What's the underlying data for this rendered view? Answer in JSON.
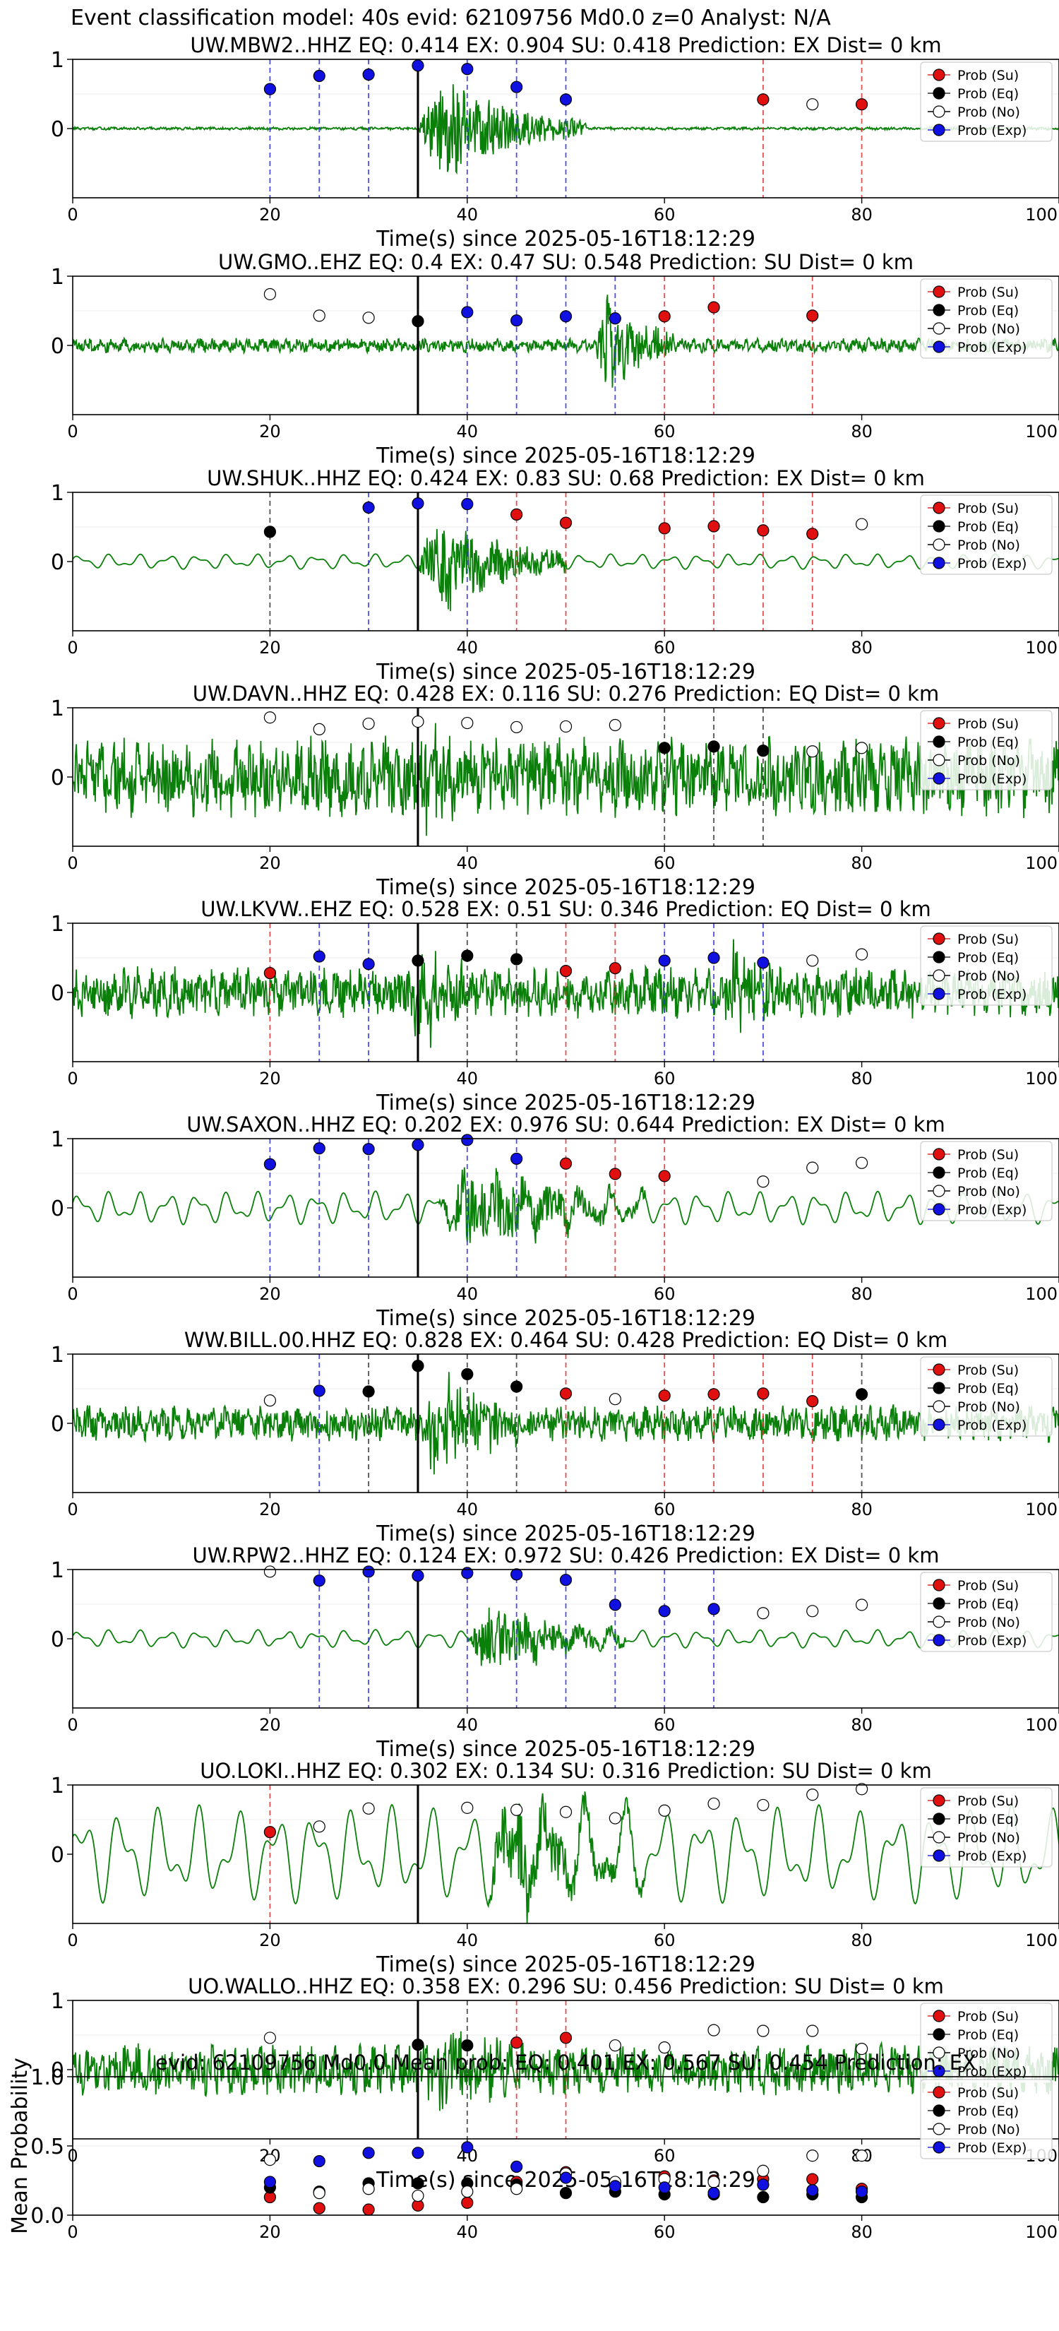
{
  "figure": {
    "title": "Event classification model: 40s evid: 62109756 Md0.0 z=0 Analyst: N/A"
  },
  "legend_labels": [
    "Prob (Su)",
    "Prob (Eq)",
    "Prob (No)",
    "Prob (Exp)"
  ],
  "colors": {
    "su": "#e01010",
    "eq": "#000000",
    "no": "#ffffff",
    "exp": "#1010e0",
    "waveform": "#0a800a",
    "su_line": "#e03030",
    "eq_line": "#333333",
    "exp_line": "#3030e0",
    "arrival_line": "#000000"
  },
  "chart_data": [
    {
      "type": "scatter",
      "station": "UW.MBW2..HHZ",
      "title": "UW.MBW2..HHZ   EQ: 0.414   EX: 0.904   SU: 0.418   Prediction: EX    Dist= 0 km",
      "xlabel": "Time(s) since 2025-05-16T18:12:29",
      "xlim": [
        0,
        100
      ],
      "ylim": [
        -1,
        1
      ],
      "x_ticks": [
        "0",
        "20",
        "40",
        "60",
        "80",
        "100"
      ],
      "y_ticks": [
        "1",
        "0"
      ],
      "arrival": 35,
      "noise": 0.02,
      "bursts": [
        {
          "start": 35,
          "end": 52,
          "amp": 1.0
        }
      ],
      "wave_style": "hf",
      "points": [
        {
          "x": 20,
          "y": 0.57,
          "c": "exp"
        },
        {
          "x": 25,
          "y": 0.76,
          "c": "exp"
        },
        {
          "x": 30,
          "y": 0.78,
          "c": "exp"
        },
        {
          "x": 35,
          "y": 0.91,
          "c": "exp"
        },
        {
          "x": 40,
          "y": 0.86,
          "c": "exp"
        },
        {
          "x": 45,
          "y": 0.6,
          "c": "exp"
        },
        {
          "x": 50,
          "y": 0.42,
          "c": "exp"
        },
        {
          "x": 70,
          "y": 0.42,
          "c": "su"
        },
        {
          "x": 75,
          "y": 0.35,
          "c": "no"
        },
        {
          "x": 80,
          "y": 0.35,
          "c": "su"
        }
      ]
    },
    {
      "type": "scatter",
      "station": "UW.GMO..EHZ",
      "title": "UW.GMO..EHZ   EQ: 0.4  EX: 0.47  SU: 0.548   Prediction: SU    Dist= 0 km",
      "xlabel": "Time(s) since 2025-05-16T18:12:29",
      "xlim": [
        0,
        100
      ],
      "ylim": [
        -1,
        1
      ],
      "x_ticks": [
        "0",
        "20",
        "40",
        "60",
        "80",
        "100"
      ],
      "y_ticks": [
        "1",
        "0"
      ],
      "arrival": 35,
      "noise": 0.1,
      "bursts": [
        {
          "start": 53,
          "end": 61,
          "amp": 1.0
        }
      ],
      "wave_style": "hf",
      "points": [
        {
          "x": 20,
          "y": 0.74,
          "c": "no"
        },
        {
          "x": 25,
          "y": 0.43,
          "c": "no"
        },
        {
          "x": 30,
          "y": 0.4,
          "c": "no"
        },
        {
          "x": 35,
          "y": 0.35,
          "c": "eq"
        },
        {
          "x": 40,
          "y": 0.48,
          "c": "exp"
        },
        {
          "x": 45,
          "y": 0.36,
          "c": "exp"
        },
        {
          "x": 50,
          "y": 0.42,
          "c": "exp"
        },
        {
          "x": 55,
          "y": 0.39,
          "c": "exp"
        },
        {
          "x": 60,
          "y": 0.42,
          "c": "su"
        },
        {
          "x": 65,
          "y": 0.55,
          "c": "su"
        },
        {
          "x": 75,
          "y": 0.43,
          "c": "su"
        }
      ]
    },
    {
      "type": "scatter",
      "station": "UW.SHUK..HHZ",
      "title": "UW.SHUK..HHZ   EQ: 0.424  EX: 0.83  SU: 0.68   Prediction: EX    Dist= 0 km",
      "xlabel": "Time(s) since 2025-05-16T18:12:29",
      "xlim": [
        0,
        100
      ],
      "ylim": [
        -1,
        1
      ],
      "x_ticks": [
        "0",
        "20",
        "40",
        "60",
        "80",
        "100"
      ],
      "y_ticks": [
        "1",
        "0"
      ],
      "arrival": 35,
      "noise": 0.1,
      "bursts": [
        {
          "start": 35,
          "end": 50,
          "amp": 0.95
        }
      ],
      "wave_style": "lf",
      "points": [
        {
          "x": 20,
          "y": 0.43,
          "c": "eq"
        },
        {
          "x": 30,
          "y": 0.78,
          "c": "exp"
        },
        {
          "x": 35,
          "y": 0.84,
          "c": "exp"
        },
        {
          "x": 40,
          "y": 0.83,
          "c": "exp"
        },
        {
          "x": 45,
          "y": 0.68,
          "c": "su"
        },
        {
          "x": 50,
          "y": 0.56,
          "c": "su"
        },
        {
          "x": 60,
          "y": 0.48,
          "c": "su"
        },
        {
          "x": 65,
          "y": 0.51,
          "c": "su"
        },
        {
          "x": 70,
          "y": 0.45,
          "c": "su"
        },
        {
          "x": 75,
          "y": 0.4,
          "c": "su"
        },
        {
          "x": 80,
          "y": 0.54,
          "c": "no"
        }
      ]
    },
    {
      "type": "scatter",
      "station": "UW.DAVN..HHZ",
      "title": "UW.DAVN..HHZ   EQ: 0.428  EX: 0.116  SU: 0.276   Prediction: EQ    Dist= 0 km",
      "xlabel": "Time(s) since 2025-05-16T18:12:29",
      "xlim": [
        0,
        100
      ],
      "ylim": [
        -1,
        1
      ],
      "x_ticks": [
        "0",
        "20",
        "40",
        "60",
        "80",
        "100"
      ],
      "y_ticks": [
        "1",
        "0"
      ],
      "arrival": 35,
      "noise": 0.55,
      "bursts": [
        {
          "start": 35,
          "end": 40,
          "amp": 0.95
        }
      ],
      "wave_style": "hf",
      "points": [
        {
          "x": 20,
          "y": 0.86,
          "c": "no"
        },
        {
          "x": 25,
          "y": 0.69,
          "c": "no"
        },
        {
          "x": 30,
          "y": 0.77,
          "c": "no"
        },
        {
          "x": 35,
          "y": 0.8,
          "c": "no"
        },
        {
          "x": 40,
          "y": 0.78,
          "c": "no"
        },
        {
          "x": 45,
          "y": 0.72,
          "c": "no"
        },
        {
          "x": 50,
          "y": 0.73,
          "c": "no"
        },
        {
          "x": 55,
          "y": 0.75,
          "c": "no"
        },
        {
          "x": 60,
          "y": 0.42,
          "c": "eq"
        },
        {
          "x": 65,
          "y": 0.44,
          "c": "eq"
        },
        {
          "x": 70,
          "y": 0.38,
          "c": "eq"
        },
        {
          "x": 75,
          "y": 0.37,
          "c": "no"
        },
        {
          "x": 80,
          "y": 0.42,
          "c": "no"
        }
      ]
    },
    {
      "type": "scatter",
      "station": "UW.LKVW..EHZ",
      "title": "UW.LKVW..EHZ   EQ: 0.528  EX: 0.51  SU: 0.346   Prediction: EQ    Dist= 0 km",
      "xlabel": "Time(s) since 2025-05-16T18:12:29",
      "xlim": [
        0,
        100
      ],
      "ylim": [
        -1,
        1
      ],
      "x_ticks": [
        "0",
        "20",
        "40",
        "60",
        "80",
        "100"
      ],
      "y_ticks": [
        "1",
        "0"
      ],
      "arrival": 35,
      "noise": 0.35,
      "bursts": [
        {
          "start": 34,
          "end": 42,
          "amp": 0.85
        },
        {
          "start": 66,
          "end": 72,
          "amp": 0.75
        }
      ],
      "wave_style": "hf",
      "points": [
        {
          "x": 20,
          "y": 0.28,
          "c": "su"
        },
        {
          "x": 25,
          "y": 0.52,
          "c": "exp"
        },
        {
          "x": 30,
          "y": 0.41,
          "c": "exp"
        },
        {
          "x": 35,
          "y": 0.46,
          "c": "eq"
        },
        {
          "x": 40,
          "y": 0.53,
          "c": "eq"
        },
        {
          "x": 45,
          "y": 0.48,
          "c": "eq"
        },
        {
          "x": 50,
          "y": 0.31,
          "c": "su"
        },
        {
          "x": 55,
          "y": 0.35,
          "c": "su"
        },
        {
          "x": 60,
          "y": 0.46,
          "c": "exp"
        },
        {
          "x": 65,
          "y": 0.5,
          "c": "exp"
        },
        {
          "x": 70,
          "y": 0.43,
          "c": "exp"
        },
        {
          "x": 75,
          "y": 0.46,
          "c": "no"
        },
        {
          "x": 80,
          "y": 0.55,
          "c": "no"
        }
      ]
    },
    {
      "type": "scatter",
      "station": "UW.SAXON..HHZ",
      "title": "UW.SAXON..HHZ   EQ: 0.202  EX: 0.976  SU: 0.644   Prediction: EX    Dist= 0 km",
      "xlabel": "Time(s) since 2025-05-16T18:12:29",
      "xlim": [
        0,
        100
      ],
      "ylim": [
        -1,
        1
      ],
      "x_ticks": [
        "0",
        "20",
        "40",
        "60",
        "80",
        "100"
      ],
      "y_ticks": [
        "1",
        "0"
      ],
      "arrival": 35,
      "noise": 0.22,
      "bursts": [
        {
          "start": 37,
          "end": 58,
          "amp": 0.8
        }
      ],
      "wave_style": "lf",
      "points": [
        {
          "x": 20,
          "y": 0.63,
          "c": "exp"
        },
        {
          "x": 25,
          "y": 0.86,
          "c": "exp"
        },
        {
          "x": 30,
          "y": 0.85,
          "c": "exp"
        },
        {
          "x": 35,
          "y": 0.91,
          "c": "exp"
        },
        {
          "x": 40,
          "y": 0.98,
          "c": "exp"
        },
        {
          "x": 45,
          "y": 0.71,
          "c": "exp"
        },
        {
          "x": 50,
          "y": 0.64,
          "c": "su"
        },
        {
          "x": 55,
          "y": 0.49,
          "c": "su"
        },
        {
          "x": 60,
          "y": 0.46,
          "c": "su"
        },
        {
          "x": 70,
          "y": 0.38,
          "c": "no"
        },
        {
          "x": 75,
          "y": 0.58,
          "c": "no"
        },
        {
          "x": 80,
          "y": 0.65,
          "c": "no"
        }
      ]
    },
    {
      "type": "scatter",
      "station": "WW.BILL.00.HHZ",
      "title": "WW.BILL.00.HHZ   EQ: 0.828  EX: 0.464  SU: 0.428   Prediction: EQ    Dist= 0 km",
      "xlabel": "Time(s) since 2025-05-16T18:12:29",
      "xlim": [
        0,
        100
      ],
      "ylim": [
        -1,
        1
      ],
      "x_ticks": [
        "0",
        "20",
        "40",
        "60",
        "80",
        "100"
      ],
      "y_ticks": [
        "1",
        "0"
      ],
      "arrival": 35,
      "noise": 0.25,
      "bursts": [
        {
          "start": 35,
          "end": 46,
          "amp": 0.95
        }
      ],
      "wave_style": "hf",
      "points": [
        {
          "x": 20,
          "y": 0.33,
          "c": "no"
        },
        {
          "x": 25,
          "y": 0.47,
          "c": "exp"
        },
        {
          "x": 30,
          "y": 0.46,
          "c": "eq"
        },
        {
          "x": 35,
          "y": 0.83,
          "c": "eq"
        },
        {
          "x": 40,
          "y": 0.71,
          "c": "eq"
        },
        {
          "x": 45,
          "y": 0.53,
          "c": "eq"
        },
        {
          "x": 50,
          "y": 0.43,
          "c": "su"
        },
        {
          "x": 55,
          "y": 0.35,
          "c": "no"
        },
        {
          "x": 60,
          "y": 0.4,
          "c": "su"
        },
        {
          "x": 65,
          "y": 0.42,
          "c": "su"
        },
        {
          "x": 70,
          "y": 0.43,
          "c": "su"
        },
        {
          "x": 75,
          "y": 0.32,
          "c": "su"
        },
        {
          "x": 80,
          "y": 0.42,
          "c": "eq"
        }
      ]
    },
    {
      "type": "scatter",
      "station": "UW.RPW2..HHZ",
      "title": "UW.RPW2..HHZ   EQ: 0.124  EX: 0.972  SU: 0.426   Prediction: EX    Dist= 0 km",
      "xlabel": "Time(s) since 2025-05-16T18:12:29",
      "xlim": [
        0,
        100
      ],
      "ylim": [
        -1,
        1
      ],
      "x_ticks": [
        "0",
        "20",
        "40",
        "60",
        "80",
        "100"
      ],
      "y_ticks": [
        "1",
        "0"
      ],
      "arrival": 35,
      "noise": 0.12,
      "bursts": [
        {
          "start": 40,
          "end": 56,
          "amp": 0.7
        }
      ],
      "wave_style": "lf",
      "points": [
        {
          "x": 20,
          "y": 0.97,
          "c": "no"
        },
        {
          "x": 25,
          "y": 0.84,
          "c": "exp"
        },
        {
          "x": 30,
          "y": 0.97,
          "c": "exp"
        },
        {
          "x": 35,
          "y": 0.91,
          "c": "exp"
        },
        {
          "x": 40,
          "y": 0.95,
          "c": "exp"
        },
        {
          "x": 45,
          "y": 0.93,
          "c": "exp"
        },
        {
          "x": 50,
          "y": 0.85,
          "c": "exp"
        },
        {
          "x": 55,
          "y": 0.49,
          "c": "exp"
        },
        {
          "x": 60,
          "y": 0.4,
          "c": "exp"
        },
        {
          "x": 65,
          "y": 0.43,
          "c": "exp"
        },
        {
          "x": 70,
          "y": 0.37,
          "c": "no"
        },
        {
          "x": 75,
          "y": 0.4,
          "c": "no"
        },
        {
          "x": 80,
          "y": 0.49,
          "c": "no"
        }
      ]
    },
    {
      "type": "scatter",
      "station": "UO.LOKI..HHZ",
      "title": "UO.LOKI..HHZ   EQ: 0.302  EX: 0.134  SU: 0.316   Prediction: SU    Dist= 0 km",
      "xlabel": "Time(s) since 2025-05-16T18:12:29",
      "xlim": [
        0,
        100
      ],
      "ylim": [
        -1,
        1
      ],
      "x_ticks": [
        "0",
        "20",
        "40",
        "60",
        "80",
        "100"
      ],
      "y_ticks": [
        "1",
        "0"
      ],
      "arrival": 35,
      "noise": 0.55,
      "bursts": [
        {
          "start": 42,
          "end": 58,
          "amp": 0.9
        }
      ],
      "wave_style": "vlf",
      "points": [
        {
          "x": 20,
          "y": 0.32,
          "c": "su"
        },
        {
          "x": 25,
          "y": 0.4,
          "c": "no"
        },
        {
          "x": 30,
          "y": 0.66,
          "c": "no"
        },
        {
          "x": 40,
          "y": 0.67,
          "c": "no"
        },
        {
          "x": 45,
          "y": 0.64,
          "c": "no"
        },
        {
          "x": 50,
          "y": 0.61,
          "c": "no"
        },
        {
          "x": 55,
          "y": 0.52,
          "c": "no"
        },
        {
          "x": 60,
          "y": 0.63,
          "c": "no"
        },
        {
          "x": 65,
          "y": 0.73,
          "c": "no"
        },
        {
          "x": 70,
          "y": 0.71,
          "c": "no"
        },
        {
          "x": 75,
          "y": 0.86,
          "c": "no"
        },
        {
          "x": 80,
          "y": 0.94,
          "c": "no"
        }
      ]
    },
    {
      "type": "scatter",
      "station": "UO.WALLO..HHZ",
      "title": "UO.WALLO..HHZ   EQ: 0.358  EX: 0.296  SU: 0.456   Prediction: SU    Dist= 0 km",
      "xlabel": "Time(s) since 2025-05-16T18:12:29",
      "xlim": [
        0,
        100
      ],
      "ylim": [
        -1,
        1
      ],
      "x_ticks": [
        "0",
        "20",
        "40",
        "60",
        "80",
        "100"
      ],
      "y_ticks": [
        "1",
        "0"
      ],
      "arrival": 35,
      "noise": 0.35,
      "bursts": [
        {
          "start": 35,
          "end": 48,
          "amp": 0.7
        }
      ],
      "wave_style": "hf",
      "points": [
        {
          "x": 20,
          "y": 0.46,
          "c": "no"
        },
        {
          "x": 35,
          "y": 0.36,
          "c": "eq"
        },
        {
          "x": 40,
          "y": 0.35,
          "c": "eq"
        },
        {
          "x": 45,
          "y": 0.39,
          "c": "su"
        },
        {
          "x": 50,
          "y": 0.46,
          "c": "su"
        },
        {
          "x": 55,
          "y": 0.35,
          "c": "no"
        },
        {
          "x": 60,
          "y": 0.32,
          "c": "no"
        },
        {
          "x": 65,
          "y": 0.57,
          "c": "no"
        },
        {
          "x": 70,
          "y": 0.56,
          "c": "no"
        },
        {
          "x": 75,
          "y": 0.56,
          "c": "no"
        },
        {
          "x": 80,
          "y": 0.3,
          "c": "no"
        }
      ]
    },
    {
      "type": "scatter",
      "station": "mean",
      "title": "evid: 62109756  Md0.0   Mean prob:   EQ: 0.401  EX: 0.567  SU: 0.454   Prediction: EX",
      "xlabel": "",
      "ylabel": "Mean Probability",
      "xlim": [
        0,
        100
      ],
      "ylim": [
        0,
        1
      ],
      "x_ticks": [
        "0",
        "20",
        "40",
        "60",
        "80",
        "100"
      ],
      "y_ticks": [
        "1.0",
        "0.5",
        "0.0"
      ],
      "x": [
        20,
        25,
        30,
        35,
        40,
        45,
        50,
        55,
        60,
        65,
        70,
        75,
        80
      ],
      "series": [
        {
          "name": "Prob (Su)",
          "c": "su",
          "values": [
            0.13,
            0.05,
            0.04,
            0.07,
            0.09,
            0.24,
            0.31,
            0.22,
            0.28,
            0.25,
            0.26,
            0.26,
            0.19
          ]
        },
        {
          "name": "Prob (Eq)",
          "c": "eq",
          "values": [
            0.2,
            0.17,
            0.23,
            0.23,
            0.23,
            0.22,
            0.16,
            0.17,
            0.15,
            0.15,
            0.13,
            0.15,
            0.13
          ]
        },
        {
          "name": "Prob (No)",
          "c": "no",
          "values": [
            0.4,
            0.16,
            0.19,
            0.14,
            0.17,
            0.19,
            0.3,
            0.24,
            0.26,
            0.24,
            0.32,
            0.43,
            0.43
          ]
        },
        {
          "name": "Prob (Exp)",
          "c": "exp",
          "values": [
            0.24,
            0.39,
            0.45,
            0.45,
            0.49,
            0.35,
            0.27,
            0.21,
            0.2,
            0.16,
            0.22,
            0.18,
            0.17
          ]
        }
      ]
    }
  ]
}
